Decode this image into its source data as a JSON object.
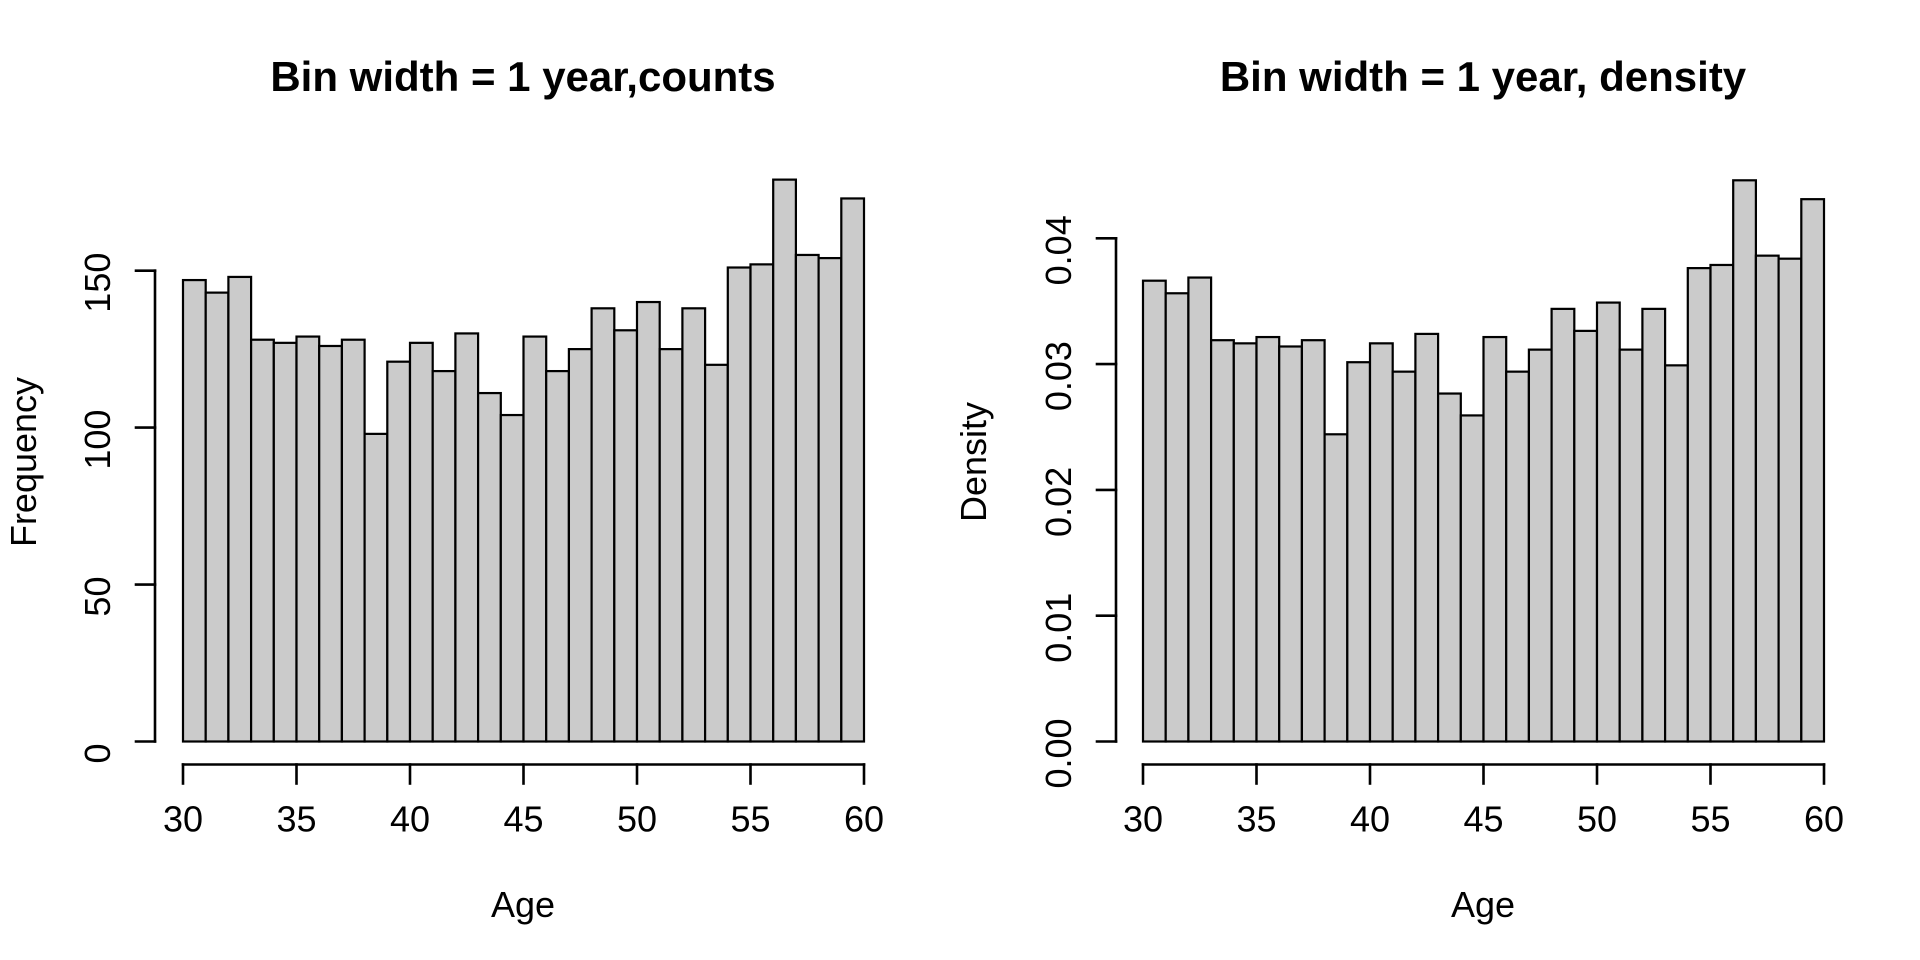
{
  "colors": {
    "background": "#ffffff",
    "bar_fill": "#cbcbcb",
    "bar_stroke": "#000000",
    "text": "#000000"
  },
  "chart_data": [
    {
      "type": "histogram",
      "title": "Bin width = 1 year,counts",
      "xlabel": "Age",
      "ylabel": "Frequency",
      "bin_start": 30,
      "bin_width": 1,
      "categories": [
        30,
        31,
        32,
        33,
        34,
        35,
        36,
        37,
        38,
        39,
        40,
        41,
        42,
        43,
        44,
        45,
        46,
        47,
        48,
        49,
        50,
        51,
        52,
        53,
        54,
        55,
        56,
        57,
        58,
        59
      ],
      "values": [
        147,
        143,
        148,
        128,
        127,
        129,
        126,
        128,
        98,
        121,
        127,
        118,
        130,
        111,
        104,
        129,
        118,
        125,
        138,
        131,
        140,
        125,
        138,
        120,
        151,
        152,
        179,
        155,
        154,
        173
      ],
      "x_ticks": [
        "30",
        "35",
        "40",
        "45",
        "50",
        "55",
        "60"
      ],
      "x_tick_values": [
        30,
        35,
        40,
        45,
        50,
        55,
        60
      ],
      "y_ticks": [
        "0",
        "50",
        "100",
        "150"
      ],
      "y_tick_values": [
        0,
        50,
        100,
        150
      ],
      "xlim": [
        30,
        60
      ],
      "ylim": [
        0,
        180
      ],
      "grid": "off",
      "legend": "none"
    },
    {
      "type": "histogram",
      "title": "Bin width = 1 year, density",
      "xlabel": "Age",
      "ylabel": "Density",
      "bin_start": 30,
      "bin_width": 1,
      "categories": [
        30,
        31,
        32,
        33,
        34,
        35,
        36,
        37,
        38,
        39,
        40,
        41,
        42,
        43,
        44,
        45,
        46,
        47,
        48,
        49,
        50,
        51,
        52,
        53,
        54,
        55,
        56,
        57,
        58,
        59
      ],
      "values": [
        0.03663,
        0.03563,
        0.03688,
        0.0319,
        0.03165,
        0.03215,
        0.0314,
        0.0319,
        0.02442,
        0.03015,
        0.03165,
        0.0294,
        0.0324,
        0.02766,
        0.02592,
        0.03215,
        0.0294,
        0.03115,
        0.03439,
        0.03264,
        0.03489,
        0.03115,
        0.03439,
        0.0299,
        0.03763,
        0.03788,
        0.04461,
        0.03862,
        0.03838,
        0.04311
      ],
      "x_ticks": [
        "30",
        "35",
        "40",
        "45",
        "50",
        "55",
        "60"
      ],
      "x_tick_values": [
        30,
        35,
        40,
        45,
        50,
        55,
        60
      ],
      "y_ticks": [
        "0.00",
        "0.01",
        "0.02",
        "0.03",
        "0.04"
      ],
      "y_tick_values": [
        0,
        0.01,
        0.02,
        0.03,
        0.04
      ],
      "xlim": [
        30,
        60
      ],
      "ylim": [
        0,
        0.045
      ],
      "grid": "off",
      "legend": "none"
    }
  ]
}
